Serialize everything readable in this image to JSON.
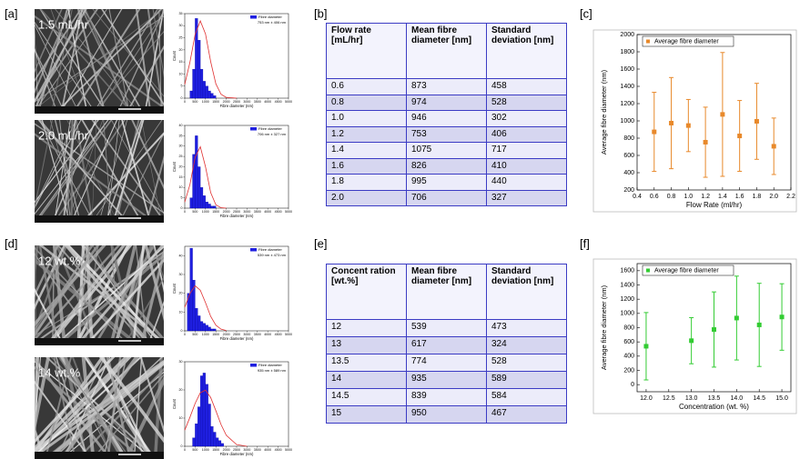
{
  "panel_labels": [
    "[a]",
    "[b]",
    "[c]",
    "[d]",
    "[e]",
    "[f]"
  ],
  "sem_labels": [
    "1.5 mL/hr",
    "2.0 mL/hr",
    "12 wt.%",
    "14 wt.%"
  ],
  "tables": [
    {
      "header": [
        "Flow rate [mL/hr]",
        "Mean fibre diameter [nm]",
        "Standard deviation [nm]"
      ],
      "rows": [
        [
          "0.6",
          "873",
          "458"
        ],
        [
          "0.8",
          "974",
          "528"
        ],
        [
          "1.0",
          "946",
          "302"
        ],
        [
          "1.2",
          "753",
          "406"
        ],
        [
          "1.4",
          "1075",
          "717"
        ],
        [
          "1.6",
          "826",
          "410"
        ],
        [
          "1.8",
          "995",
          "440"
        ],
        [
          "2.0",
          "706",
          "327"
        ]
      ]
    },
    {
      "header": [
        "Concent ration [wt.%]",
        "Mean fibre diameter [nm]",
        "Standard deviation [nm]"
      ],
      "rows": [
        [
          "12",
          "539",
          "473"
        ],
        [
          "13",
          "617",
          "324"
        ],
        [
          "13.5",
          "774",
          "528"
        ],
        [
          "14",
          "935",
          "589"
        ],
        [
          "14.5",
          "839",
          "584"
        ],
        [
          "15",
          "950",
          "467"
        ]
      ]
    }
  ],
  "chart_data": [
    {
      "type": "histogram",
      "legend": "Fibre diameter",
      "annotation": "753 nm ± 406 nm",
      "x_label": "Fibre diameter (nm)",
      "y_label": "Count",
      "bins": [
        250,
        375,
        500,
        625,
        750,
        875,
        1000,
        1125,
        1250,
        1375,
        1500
      ],
      "counts": [
        3,
        12,
        33,
        24,
        12,
        7,
        5,
        3,
        2,
        1
      ],
      "color": "#1f1fe0",
      "fit": {
        "color": "#e03030",
        "x": [
          0,
          250,
          500,
          750,
          1000,
          1250,
          1500,
          1750,
          2000,
          2500
        ],
        "y": [
          5.7,
          14.9,
          26.4,
          32,
          26.6,
          15.1,
          5.9,
          1.6,
          0.3,
          0
        ]
      },
      "xlim": [
        0,
        5000
      ],
      "xticks": [
        0,
        500,
        1000,
        1500,
        2000,
        2500,
        3000,
        3500,
        4000,
        4500,
        5000
      ],
      "ylim": [
        0,
        35
      ],
      "yticks": [
        0,
        5,
        10,
        15,
        20,
        25,
        30,
        35
      ]
    },
    {
      "type": "histogram",
      "legend": "Fibre diameter",
      "annotation": "706 nm ± 327 nm",
      "x_label": "Fibre diameter (nm)",
      "y_label": "Count",
      "bins": [
        250,
        375,
        500,
        625,
        750,
        875,
        1000,
        1125,
        1250,
        1375,
        1500
      ],
      "counts": [
        5,
        26,
        35,
        20,
        10,
        6,
        3,
        2,
        1,
        1
      ],
      "color": "#1f1fe0",
      "fit": {
        "color": "#e03030",
        "x": [
          0,
          250,
          500,
          750,
          1000,
          1250,
          1500,
          1750,
          2000
        ],
        "y": [
          2.9,
          11.4,
          24.6,
          29.7,
          20,
          7.5,
          1.6,
          0.2,
          0
        ]
      },
      "xlim": [
        0,
        5000
      ],
      "xticks": [
        0,
        500,
        1000,
        1500,
        2000,
        2500,
        3000,
        3500,
        4000,
        4500,
        5000
      ],
      "ylim": [
        0,
        40
      ],
      "yticks": [
        0,
        5,
        10,
        15,
        20,
        25,
        30,
        35,
        40
      ]
    },
    {
      "type": "errorbar",
      "legend": "Average fibre diameter",
      "x_label": "Flow Rate (ml/hr)",
      "y_label": "Average fibre diameter (nm)",
      "color": "#e8892b",
      "x": [
        0.6,
        0.8,
        1.0,
        1.2,
        1.4,
        1.6,
        1.8,
        2.0
      ],
      "values": [
        873,
        974,
        946,
        753,
        1075,
        826,
        995,
        706
      ],
      "errors": [
        458,
        528,
        302,
        406,
        717,
        410,
        440,
        327
      ],
      "xlim": [
        0.4,
        2.2
      ],
      "xticks": [
        0.4,
        0.6,
        0.8,
        {
          "value": 1,
          "label": "1.0"
        },
        1.2,
        1.4,
        1.6,
        1.8,
        {
          "value": 2,
          "label": "2.0"
        },
        2.2
      ],
      "ylim": [
        200,
        2000
      ],
      "yticks": [
        200,
        400,
        600,
        800,
        1000,
        1200,
        1400,
        1600,
        1800,
        2000
      ]
    },
    {
      "type": "histogram",
      "legend": "Fibre diameter",
      "annotation": "539 nm ± 473 nm",
      "x_label": "Fibre diameter (nm)",
      "y_label": "Count",
      "bins": [
        125,
        250,
        375,
        500,
        625,
        750,
        875,
        1000,
        1125,
        1250,
        1375,
        1500
      ],
      "counts": [
        20,
        44,
        27,
        12,
        8,
        5,
        4,
        3,
        2,
        1,
        1
      ],
      "color": "#1f1fe0",
      "fit": {
        "color": "#e03030",
        "x": [
          0,
          250,
          500,
          750,
          1000,
          1250,
          1500,
          1750,
          2000
        ],
        "y": [
          12.5,
          19.9,
          24,
          21.6,
          15,
          7.7,
          3,
          0.9,
          0.2
        ]
      },
      "xlim": [
        0,
        5000
      ],
      "xticks": [
        0,
        500,
        1000,
        1500,
        2000,
        2500,
        3000,
        3500,
        4000,
        4500,
        5000
      ],
      "ylim": [
        0,
        45
      ],
      "yticks": [
        0,
        10,
        20,
        30,
        40
      ]
    },
    {
      "type": "histogram",
      "legend": "Fibre diameter",
      "annotation": "935 nm ± 589 nm",
      "x_label": "Fibre diameter (nm)",
      "y_label": "Count",
      "bins": [
        375,
        500,
        625,
        750,
        875,
        1000,
        1125,
        1250,
        1375,
        1500,
        1625,
        1750,
        1875
      ],
      "counts": [
        3,
        8,
        14,
        25,
        26,
        22,
        15,
        7,
        5,
        3,
        2,
        1
      ],
      "color": "#1f1fe0",
      "fit": {
        "color": "#e03030",
        "x": [
          0,
          250,
          500,
          750,
          1000,
          1250,
          1500,
          1750,
          2000,
          2500,
          3000
        ],
        "y": [
          5.7,
          10.3,
          15.2,
          19,
          19.9,
          17.3,
          12.6,
          7.7,
          3.9,
          0.6,
          0
        ]
      },
      "xlim": [
        0,
        5000
      ],
      "xticks": [
        0,
        500,
        1000,
        1500,
        2000,
        2500,
        3000,
        3500,
        4000,
        4500,
        5000
      ],
      "ylim": [
        0,
        30
      ],
      "yticks": [
        0,
        10,
        20,
        30
      ]
    },
    {
      "type": "errorbar",
      "legend": "Average fibre diameter",
      "x_label": "Concentration (wt. %)",
      "y_label": "Average fibre diameter (nm)",
      "color": "#33cc33",
      "x": [
        12,
        13,
        13.5,
        14,
        14.5,
        15
      ],
      "values": [
        539,
        617,
        774,
        935,
        839,
        950
      ],
      "errors": [
        473,
        324,
        528,
        589,
        584,
        467
      ],
      "xlim": [
        11.8,
        15.2
      ],
      "xticks": [
        {
          "value": 12,
          "label": "12.0"
        },
        12.5,
        {
          "value": 13,
          "label": "13.0"
        },
        13.5,
        {
          "value": 14,
          "label": "14.0"
        },
        14.5,
        {
          "value": 15,
          "label": "15.0"
        }
      ],
      "ylim": [
        -100,
        1700
      ],
      "yticks": [
        0,
        200,
        400,
        600,
        800,
        1000,
        1200,
        1400,
        1600
      ]
    }
  ]
}
